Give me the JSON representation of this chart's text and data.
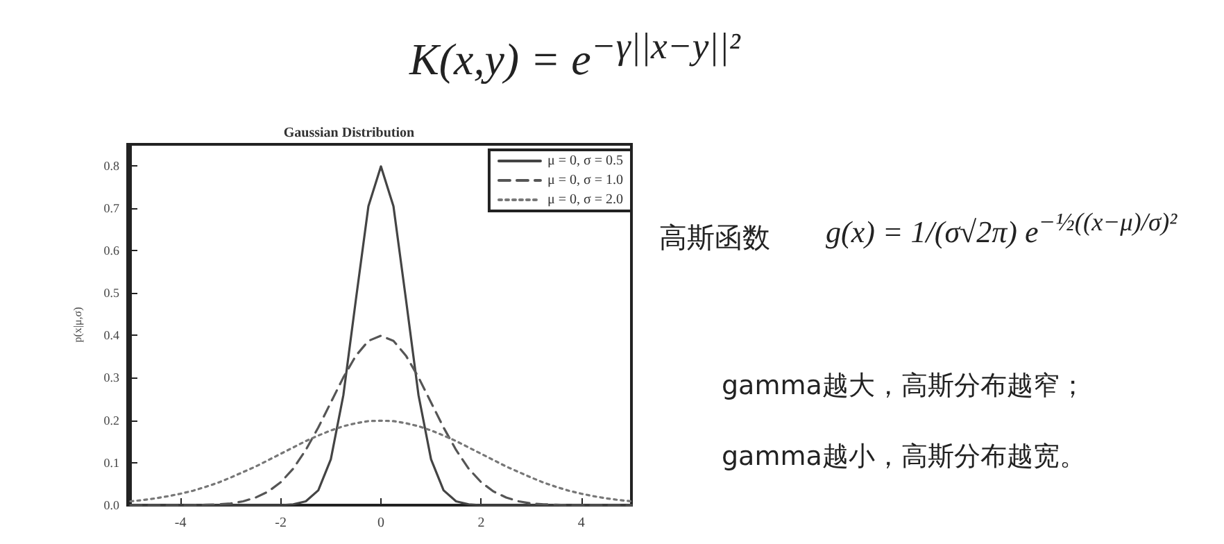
{
  "chart_data": {
    "type": "line",
    "title": "Gaussian Distribution",
    "ylabel": "p(x|μ,σ)",
    "x": [
      -5,
      -4.75,
      -4.5,
      -4.25,
      -4,
      -3.75,
      -3.5,
      -3.25,
      -3,
      -2.75,
      -2.5,
      -2.25,
      -2,
      -1.75,
      -1.5,
      -1.25,
      -1,
      -0.75,
      -0.5,
      -0.25,
      0,
      0.25,
      0.5,
      0.75,
      1,
      1.25,
      1.5,
      1.75,
      2,
      2.25,
      2.5,
      2.75,
      3,
      3.25,
      3.5,
      3.75,
      4,
      4.25,
      4.5,
      4.75,
      5
    ],
    "series": [
      {
        "name": "μ = 0, σ = 0.5",
        "color": "#444444",
        "line_style": "solid",
        "values": [
          0,
          0,
          0,
          0,
          0,
          0,
          0,
          0,
          0,
          0,
          0,
          0,
          0,
          0.002,
          0.009,
          0.035,
          0.108,
          0.259,
          0.484,
          0.704,
          0.798,
          0.704,
          0.484,
          0.259,
          0.108,
          0.035,
          0.009,
          0.002,
          0,
          0,
          0,
          0,
          0,
          0,
          0,
          0,
          0,
          0,
          0,
          0,
          0
        ]
      },
      {
        "name": "μ = 0, σ = 1.0",
        "color": "#555555",
        "line_style": "dashed",
        "values": [
          0,
          0,
          0,
          0,
          0,
          0,
          0.001,
          0.002,
          0.004,
          0.009,
          0.018,
          0.032,
          0.054,
          0.086,
          0.13,
          0.183,
          0.242,
          0.301,
          0.352,
          0.387,
          0.399,
          0.387,
          0.352,
          0.301,
          0.242,
          0.183,
          0.13,
          0.086,
          0.054,
          0.032,
          0.018,
          0.009,
          0.004,
          0.002,
          0.001,
          0,
          0,
          0,
          0,
          0,
          0
        ]
      },
      {
        "name": "μ = 0, σ = 2.0",
        "color": "#777777",
        "line_style": "dotted",
        "values": [
          0.009,
          0.012,
          0.016,
          0.021,
          0.027,
          0.034,
          0.043,
          0.053,
          0.065,
          0.078,
          0.091,
          0.106,
          0.121,
          0.136,
          0.151,
          0.164,
          0.176,
          0.186,
          0.193,
          0.198,
          0.199,
          0.198,
          0.193,
          0.186,
          0.176,
          0.164,
          0.151,
          0.136,
          0.121,
          0.106,
          0.091,
          0.078,
          0.065,
          0.053,
          0.043,
          0.034,
          0.027,
          0.021,
          0.016,
          0.012,
          0.009
        ]
      }
    ],
    "xlim": [
      -5,
      5
    ],
    "xticks": [
      -4,
      -2,
      0,
      2,
      4
    ],
    "ylim": [
      0,
      0.85
    ],
    "yticks": [
      {
        "value": 0,
        "label": "0.0"
      },
      0.1,
      0.2,
      0.3,
      0.4,
      0.5,
      0.6,
      0.7,
      0.8
    ],
    "grid": false,
    "legend": "top right",
    "marker": "none",
    "annotations": [
      "K(x,y) = e$^{−γ||x−y||²}$",
      "高斯函数",
      "g(x) = 1/(σ√2π) e$^{−½((x−μ)/σ)²}$",
      "gamma越大，高斯分布越窄；",
      "gamma越小，高斯分布越宽。"
    ]
  }
}
